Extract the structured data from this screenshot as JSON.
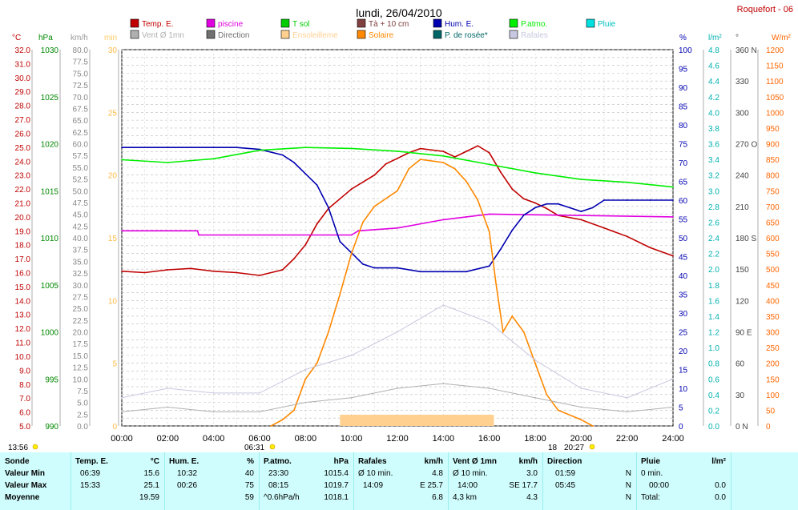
{
  "title": "lundi, 26/04/2010",
  "station": "Roquefort - 06",
  "legend": [
    {
      "label": "Temp. E.",
      "color": "#c00000"
    },
    {
      "label": "piscine",
      "color": "#e000e0"
    },
    {
      "label": "T sol",
      "color": "#00cc00"
    },
    {
      "label": "Tà + 10 cm",
      "color": "#804040"
    },
    {
      "label": "Hum. E.",
      "color": "#0000b0"
    },
    {
      "label": "P.atmo.",
      "color": "#00ee00"
    },
    {
      "label": "Pluie",
      "color": "#00e0e0"
    },
    {
      "label": "Vent Ø 1mn",
      "color": "#b0b0b0"
    },
    {
      "label": "Direction",
      "color": "#707070"
    },
    {
      "label": "Ensoleilleme",
      "color": "#ffd090"
    },
    {
      "label": "Solaire",
      "color": "#ff8800"
    },
    {
      "label": "P. de rosée*",
      "color": "#006666"
    },
    {
      "label": "Rafales",
      "color": "#c8c8e0"
    }
  ],
  "axes": {
    "temp_unit": "°C",
    "hpa_unit": "hPa",
    "kmh_unit": "km/h",
    "min_unit": "min",
    "pct_unit": "%",
    "rain_unit": "l/m²",
    "deg_unit": "°",
    "wm2_unit": "W/m²",
    "temp_ticks": [
      "32.0",
      "31.0",
      "30.0",
      "29.0",
      "28.0",
      "27.0",
      "26.0",
      "25.0",
      "24.0",
      "23.0",
      "22.0",
      "21.0",
      "20.0",
      "19.0",
      "18.0",
      "17.0",
      "16.0",
      "15.0",
      "14.0",
      "13.0",
      "12.0",
      "11.0",
      "10.0",
      "9.0",
      "8.0",
      "7.0",
      "6.0",
      "5.0"
    ],
    "hpa_ticks": [
      "1030",
      "1025",
      "1020",
      "1015",
      "1010",
      "1005",
      "1000",
      "995",
      "990"
    ],
    "kmh_ticks": [
      "80.0",
      "77.5",
      "75.0",
      "72.5",
      "70.0",
      "67.5",
      "65.0",
      "62.5",
      "60.0",
      "57.5",
      "55.0",
      "52.5",
      "50.0",
      "47.5",
      "45.0",
      "42.5",
      "40.0",
      "37.5",
      "35.0",
      "32.5",
      "30.0",
      "27.5",
      "25.0",
      "22.5",
      "20.0",
      "17.5",
      "15.0",
      "12.5",
      "10.0",
      "7.5",
      "5.0",
      "2.5",
      "0.0"
    ],
    "min_ticks": [
      "30",
      "25",
      "20",
      "15",
      "10",
      "5",
      "0"
    ],
    "pct_ticks": [
      "100",
      "95",
      "90",
      "85",
      "80",
      "75",
      "70",
      "65",
      "60",
      "55",
      "50",
      "45",
      "40",
      "35",
      "30",
      "25",
      "20",
      "15",
      "10",
      "5",
      "0"
    ],
    "rain_ticks": [
      "4.8",
      "4.6",
      "4.4",
      "4.2",
      "4.0",
      "3.8",
      "3.6",
      "3.4",
      "3.2",
      "3.0",
      "2.8",
      "2.6",
      "2.4",
      "2.2",
      "2.0",
      "1.8",
      "1.6",
      "1.4",
      "1.2",
      "1.0",
      "0.8",
      "0.6",
      "0.4",
      "0.2",
      "0.0"
    ],
    "deg_ticks": [
      "360 N",
      "330",
      "300",
      "270 O",
      "240",
      "210",
      "180 S",
      "150",
      "120",
      "90 E",
      "60",
      "30",
      "0   N"
    ],
    "wm2_ticks": [
      "1200",
      "1150",
      "1100",
      "1050",
      "1000",
      "950",
      "900",
      "850",
      "800",
      "750",
      "700",
      "650",
      "600",
      "550",
      "500",
      "450",
      "400",
      "350",
      "300",
      "250",
      "200",
      "150",
      "100",
      "50",
      "0"
    ],
    "x_ticks": [
      "00:00",
      "02:00",
      "04:00",
      "06:00",
      "08:00",
      "10:00",
      "12:00",
      "14:00",
      "16:00",
      "18:00",
      "20:00",
      "22:00",
      "24:00"
    ]
  },
  "markers": {
    "left_time": "13:56",
    "sunrise": "06:31",
    "sunset": "20:27",
    "moon": "18"
  },
  "chart_data": {
    "type": "line",
    "title": "lundi, 26/04/2010",
    "x_unit": "hour",
    "xlim": [
      0,
      24
    ],
    "series": [
      {
        "name": "Temp. E.",
        "unit": "°C",
        "color": "#c00000",
        "points": [
          [
            0,
            16.1
          ],
          [
            1,
            16.0
          ],
          [
            2,
            16.2
          ],
          [
            3,
            16.3
          ],
          [
            4,
            16.1
          ],
          [
            5,
            16.0
          ],
          [
            6,
            15.8
          ],
          [
            7,
            16.2
          ],
          [
            7.5,
            17.0
          ],
          [
            8,
            18.0
          ],
          [
            8.5,
            19.5
          ],
          [
            9,
            20.6
          ],
          [
            9.5,
            21.3
          ],
          [
            10,
            22.0
          ],
          [
            11,
            23.0
          ],
          [
            11.5,
            23.8
          ],
          [
            12,
            24.2
          ],
          [
            12.5,
            24.6
          ],
          [
            13,
            24.9
          ],
          [
            14,
            24.7
          ],
          [
            14.5,
            24.3
          ],
          [
            15,
            24.7
          ],
          [
            15.5,
            25.1
          ],
          [
            16,
            24.6
          ],
          [
            16.5,
            23.2
          ],
          [
            17,
            22.0
          ],
          [
            17.5,
            21.3
          ],
          [
            18,
            21.0
          ],
          [
            18.5,
            20.6
          ],
          [
            19,
            20.1
          ],
          [
            20,
            19.8
          ],
          [
            21,
            19.2
          ],
          [
            22,
            18.6
          ],
          [
            23,
            17.8
          ],
          [
            24,
            17.2
          ]
        ]
      },
      {
        "name": "piscine",
        "unit": "°C",
        "color": "#e000e0",
        "points": [
          [
            0,
            19.0
          ],
          [
            3.3,
            19.0
          ],
          [
            3.35,
            18.7
          ],
          [
            10,
            18.7
          ],
          [
            10.3,
            19.0
          ],
          [
            12,
            19.2
          ],
          [
            13,
            19.5
          ],
          [
            14,
            19.8
          ],
          [
            15,
            20.0
          ],
          [
            16,
            20.2
          ],
          [
            24,
            20.0
          ]
        ]
      },
      {
        "name": "Hum. E.",
        "unit": "%",
        "color": "#0000b0",
        "points": [
          [
            0,
            74
          ],
          [
            2,
            74
          ],
          [
            4,
            74
          ],
          [
            5,
            74
          ],
          [
            6,
            73.5
          ],
          [
            7,
            72
          ],
          [
            7.5,
            70
          ],
          [
            8,
            67
          ],
          [
            8.5,
            64
          ],
          [
            9,
            58
          ],
          [
            9.5,
            49
          ],
          [
            10,
            46
          ],
          [
            10.5,
            43
          ],
          [
            11,
            42
          ],
          [
            12,
            42
          ],
          [
            13,
            41
          ],
          [
            14,
            41
          ],
          [
            15,
            41
          ],
          [
            16,
            42.5
          ],
          [
            16.5,
            47
          ],
          [
            17,
            52
          ],
          [
            17.5,
            56
          ],
          [
            18,
            58
          ],
          [
            18.5,
            59
          ],
          [
            19,
            59
          ],
          [
            19.5,
            58
          ],
          [
            20,
            57
          ],
          [
            20.5,
            58
          ],
          [
            21,
            60
          ],
          [
            22,
            60
          ],
          [
            23,
            60
          ],
          [
            24,
            60
          ]
        ]
      },
      {
        "name": "P.atmo.",
        "unit": "hPa",
        "color": "#00ee00",
        "points": [
          [
            0,
            1018.3
          ],
          [
            2,
            1018.0
          ],
          [
            4,
            1018.4
          ],
          [
            6,
            1019.3
          ],
          [
            8,
            1019.6
          ],
          [
            10,
            1019.5
          ],
          [
            12,
            1019.2
          ],
          [
            14,
            1018.7
          ],
          [
            16,
            1017.8
          ],
          [
            18,
            1016.9
          ],
          [
            20,
            1016.2
          ],
          [
            22,
            1015.9
          ],
          [
            24,
            1015.4
          ]
        ]
      },
      {
        "name": "Solaire",
        "unit": "W/m²",
        "color": "#ff8800",
        "points": [
          [
            6.5,
            0
          ],
          [
            7,
            20
          ],
          [
            7.5,
            50
          ],
          [
            8,
            150
          ],
          [
            8.5,
            200
          ],
          [
            9,
            300
          ],
          [
            9.5,
            420
          ],
          [
            10,
            550
          ],
          [
            10.5,
            650
          ],
          [
            11,
            700
          ],
          [
            12,
            750
          ],
          [
            12.5,
            820
          ],
          [
            13,
            850
          ],
          [
            14,
            840
          ],
          [
            14.5,
            820
          ],
          [
            15,
            780
          ],
          [
            15.5,
            720
          ],
          [
            16,
            620
          ],
          [
            16.3,
            450
          ],
          [
            16.6,
            300
          ],
          [
            17,
            350
          ],
          [
            17.5,
            300
          ],
          [
            18,
            200
          ],
          [
            18.5,
            100
          ],
          [
            19,
            50
          ],
          [
            20,
            20
          ],
          [
            20.5,
            0
          ]
        ]
      },
      {
        "name": "Vent Ø 1mn",
        "unit": "km/h",
        "color": "#b0b0b0",
        "points": [
          [
            0,
            3
          ],
          [
            2,
            4
          ],
          [
            4,
            3
          ],
          [
            6,
            3
          ],
          [
            8,
            5
          ],
          [
            10,
            6
          ],
          [
            12,
            8
          ],
          [
            14,
            9
          ],
          [
            16,
            8
          ],
          [
            18,
            6
          ],
          [
            20,
            4
          ],
          [
            22,
            3
          ],
          [
            24,
            4
          ]
        ]
      },
      {
        "name": "Rafales",
        "unit": "km/h",
        "color": "#c8c8e0",
        "points": [
          [
            0,
            6
          ],
          [
            2,
            8
          ],
          [
            4,
            7
          ],
          [
            6,
            7
          ],
          [
            8,
            12
          ],
          [
            10,
            15
          ],
          [
            12,
            20
          ],
          [
            14,
            25.7
          ],
          [
            16,
            22
          ],
          [
            18,
            14
          ],
          [
            20,
            8
          ],
          [
            22,
            6
          ],
          [
            24,
            10
          ]
        ]
      }
    ]
  },
  "summary": {
    "rows": [
      "Sonde",
      "Valeur Min",
      "Valeur Max",
      "Moyenne"
    ],
    "temp": {
      "label": "Temp. E.",
      "unit": "°C",
      "min_time": "06:39",
      "min": "15.6",
      "max_time": "15:33",
      "max": "25.1",
      "mean": "19.59"
    },
    "hum": {
      "label": "Hum. E.",
      "unit": "%",
      "min_time": "10:32",
      "min": "40",
      "max_time": "00:26",
      "max": "75",
      "mean": "59"
    },
    "patmo": {
      "label": "P.atmo.",
      "unit": "hPa",
      "min_time": "23:30",
      "min": "1015.4",
      "max_time": "08:15",
      "max": "1019.7",
      "mean_label": "^0.6hPa/h",
      "mean": "1018.1"
    },
    "rafales": {
      "label": "Rafales",
      "unit": "km/h",
      "r1_label": "Ø 10 min.",
      "r1": "4.8",
      "r2_time": "14:09",
      "r2": "E 25.7",
      "mean": "6.8"
    },
    "vent": {
      "label": "Vent Ø 1mn",
      "unit": "km/h",
      "r1_label": "Ø 10 min.",
      "r1": "3.0",
      "r2_time": "14:00",
      "r2": "SE 17.7",
      "r3_label": "4,3 km",
      "r3": "4.3"
    },
    "direction": {
      "label": "Direction",
      "r1_time": "01:59",
      "r1": "N",
      "r2_time": "05:45",
      "r2": "N",
      "r3": "N"
    },
    "pluie": {
      "label": "Pluie",
      "unit": "l/m²",
      "r1_label": "0 min.",
      "r2_time": "00:00",
      "r2": "0.0",
      "r3_label": "Total:",
      "r3": "0.0"
    }
  }
}
